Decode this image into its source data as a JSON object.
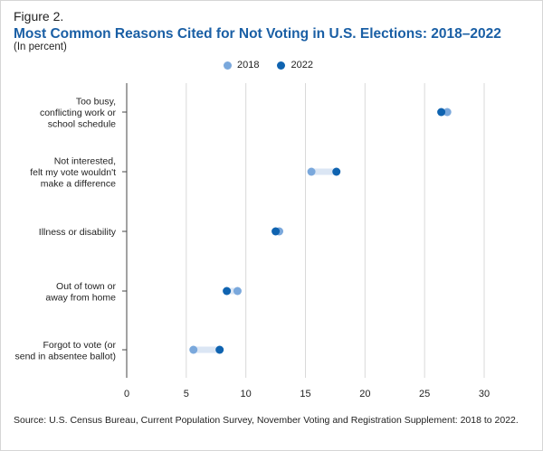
{
  "figure_label": "Figure 2.",
  "source": "Source: U.S. Census Bureau, Current Population Survey, November Voting and Registration Supplement: 2018 to 2022.",
  "colors": {
    "series_2018": "#7aa8dc",
    "series_2022": "#0f63b0",
    "connector": "#dbe6f4",
    "grid": "#d9d9d9",
    "title": "#1a5fa5"
  },
  "chart_data": {
    "type": "scatter",
    "subtype": "dumbbell",
    "title": "Most Common Reasons Cited for Not Voting in U.S. Elections: 2018–2022",
    "subtitle": "(In percent)",
    "xlabel": "",
    "ylabel": "",
    "xlim": [
      0,
      30
    ],
    "xticks": [
      "0",
      "5",
      "10",
      "15",
      "20",
      "25",
      "30"
    ],
    "grid": true,
    "legend_position": "top-center",
    "categories": [
      [
        "Too busy,",
        "conflicting work or",
        "school schedule"
      ],
      [
        "Not interested,",
        "felt my vote wouldn't",
        "make a difference"
      ],
      [
        "Illness or disability"
      ],
      [
        "Out of town or",
        "away from home"
      ],
      [
        "Forgot to vote (or",
        "send in absentee ballot)"
      ]
    ],
    "series": [
      {
        "name": "2018",
        "values": [
          26.9,
          15.5,
          12.8,
          9.3,
          5.6
        ]
      },
      {
        "name": "2022",
        "values": [
          26.4,
          17.6,
          12.5,
          8.4,
          7.8
        ]
      }
    ]
  }
}
